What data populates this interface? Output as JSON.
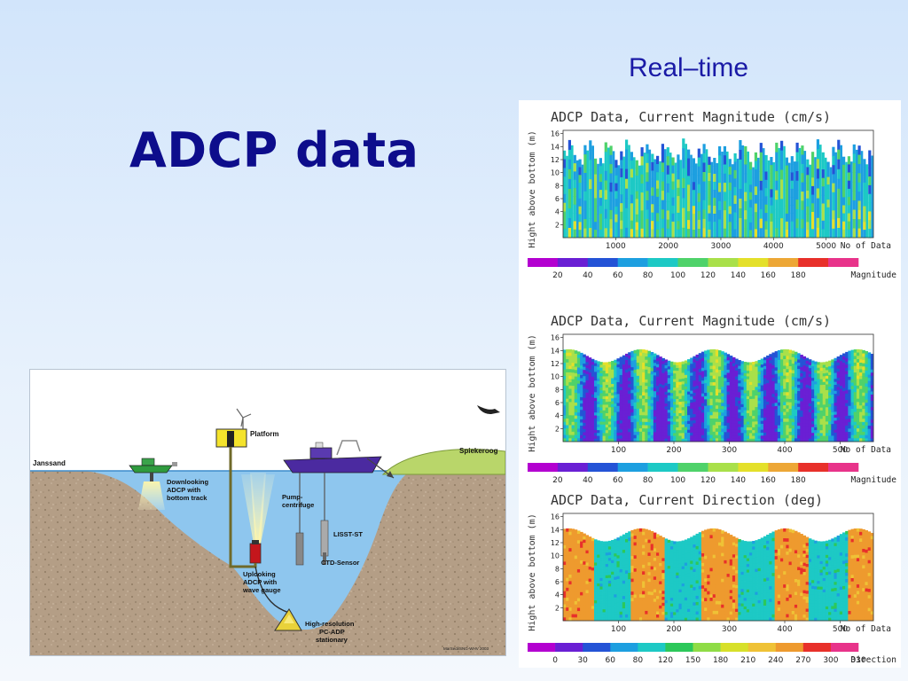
{
  "slide": {
    "title": "ADCP data",
    "subtitle": "Real–time"
  },
  "colors": {
    "title": "#0d0d8c",
    "subtitle": "#1a1aa6",
    "water": "#8ec6ee",
    "sediment": "#b59f86"
  },
  "diagram": {
    "labels": {
      "janssand": "Janssand",
      "spiekeroog": "Spiekeroog",
      "platform": "Platform",
      "downlooking": [
        "Downlooking",
        "ADCP with",
        "bottom track"
      ],
      "pump": [
        "Pump-",
        "centrifuge"
      ],
      "lisst": "LISST-ST",
      "ctd": "CTD-Sensor",
      "uplooking": [
        "Uplooking",
        "ADCP with",
        "wave gauge"
      ],
      "pcadp": [
        "High-resolution",
        "PC-ADP",
        "stationary"
      ],
      "credit": "MarSedi/SNG-WHV 2003"
    },
    "icons": [
      "boat-icon",
      "research-vessel-icon",
      "wind-turbine-icon",
      "bird-icon"
    ]
  },
  "chart_data": [
    {
      "type": "heatmap",
      "title": "ADCP Data, Current Magnitude (cm/s)",
      "xlabel": "No of Data",
      "ylabel": "Hight above bottom (m)",
      "x_ticks": [
        1000,
        2000,
        3000,
        4000,
        5000
      ],
      "xlim": [
        0,
        5900
      ],
      "y_ticks": [
        2,
        4,
        6,
        8,
        10,
        12,
        14,
        16
      ],
      "ylim": [
        0,
        16.5
      ],
      "pattern": {
        "kind": "dense-profiles",
        "count": 60,
        "top_base": 11.5,
        "top_amp": 3
      },
      "colorbar": {
        "label": "Magnitude",
        "tick_labels": [
          "20",
          "40",
          "60",
          "80",
          "100",
          "120",
          "140",
          "160",
          "180"
        ],
        "colors": [
          "#b300d0",
          "#6a1fd4",
          "#2453d6",
          "#1d9fe0",
          "#1dc9c5",
          "#4fd26a",
          "#a9e04a",
          "#e4e02a",
          "#eda736",
          "#e8302a",
          "#e8338a"
        ]
      }
    },
    {
      "type": "heatmap",
      "title": "ADCP Data, Current Magnitude (cm/s)",
      "xlabel": "No of Data",
      "ylabel": "Hight above bottom (m)",
      "x_ticks": [
        100,
        200,
        300,
        400,
        500
      ],
      "xlim": [
        0,
        560
      ],
      "y_ticks": [
        2,
        4,
        6,
        8,
        10,
        12,
        14,
        16
      ],
      "ylim": [
        0,
        16.5
      ],
      "pattern": {
        "kind": "tidal-magnitude",
        "cycles": 4.3,
        "top_base": 12.2,
        "top_amp": 2
      },
      "colorbar": {
        "label": "Magnitude",
        "tick_labels": [
          "20",
          "40",
          "60",
          "80",
          "100",
          "120",
          "140",
          "160",
          "180"
        ],
        "colors": [
          "#b300d0",
          "#6a1fd4",
          "#2453d6",
          "#1d9fe0",
          "#1dc9c5",
          "#4fd26a",
          "#a9e04a",
          "#e4e02a",
          "#eda736",
          "#e8302a",
          "#e8338a"
        ]
      }
    },
    {
      "type": "heatmap",
      "title": "ADCP Data, Current Direction (deg)",
      "xlabel": "No of Data",
      "ylabel": "Hight above bottom (m)",
      "x_ticks": [
        100,
        200,
        300,
        400,
        500
      ],
      "xlim": [
        0,
        560
      ],
      "y_ticks": [
        2,
        4,
        6,
        8,
        10,
        12,
        14,
        16
      ],
      "ylim": [
        0,
        16.5
      ],
      "pattern": {
        "kind": "tidal-direction",
        "cycles": 4.3,
        "top_base": 12.2,
        "top_amp": 2
      },
      "colorbar": {
        "label": "Direction",
        "tick_labels": [
          "0",
          "30",
          "60",
          "80",
          "120",
          "150",
          "180",
          "210",
          "240",
          "270",
          "300",
          "330"
        ],
        "colors": [
          "#b300d0",
          "#6a1fd4",
          "#2453d6",
          "#1d9fe0",
          "#1dc9c5",
          "#2cc85a",
          "#8fdc46",
          "#d7e02a",
          "#efc236",
          "#ee9a2e",
          "#e8302a",
          "#e8338a"
        ]
      }
    }
  ]
}
